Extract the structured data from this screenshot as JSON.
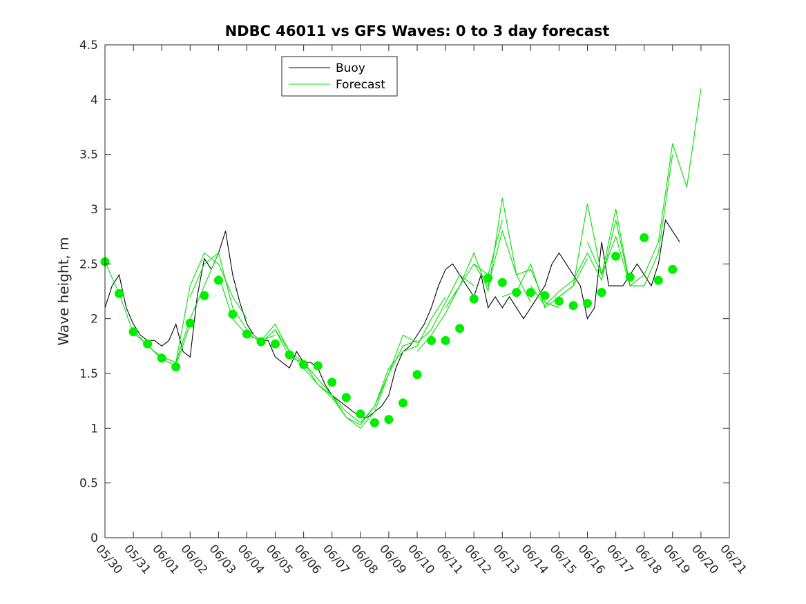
{
  "chart_data": {
    "type": "line",
    "title": "NDBC 46011 vs GFS Waves: 0 to 3 day forecast",
    "xlabel": "",
    "ylabel": "Wave height, m",
    "x_axis": {
      "type": "date",
      "range": [
        "2024-05-30",
        "2024-06-21"
      ],
      "tick_labels": [
        "05/30",
        "05/31",
        "06/01",
        "06/02",
        "06/03",
        "06/04",
        "06/05",
        "06/06",
        "06/07",
        "06/08",
        "06/09",
        "06/10",
        "06/11",
        "06/12",
        "06/13",
        "06/14",
        "06/15",
        "06/16",
        "06/17",
        "06/18",
        "06/19",
        "06/20",
        "06/21"
      ]
    },
    "y_axis": {
      "range": [
        0,
        4.5
      ],
      "tick_labels": [
        "0",
        "0.5",
        "1",
        "1.5",
        "2",
        "2.5",
        "3",
        "3.5",
        "4",
        "4.5"
      ]
    },
    "grid": false,
    "legend": {
      "placement": "top-left",
      "entries": [
        {
          "name": "Buoy",
          "color": "#000000"
        },
        {
          "name": "Forecast",
          "color": "#00e000"
        }
      ]
    },
    "colors": {
      "buoy": "#000000",
      "forecast": "#00e000",
      "marker": "#00ee00"
    },
    "series": [
      {
        "name": "Buoy",
        "x_day": [
          0,
          0.25,
          0.5,
          0.75,
          1,
          1.25,
          1.5,
          1.75,
          2,
          2.25,
          2.5,
          2.75,
          3,
          3.25,
          3.5,
          3.75,
          4,
          4.25,
          4.5,
          4.75,
          5,
          5.25,
          5.5,
          5.75,
          6,
          6.25,
          6.5,
          6.75,
          7,
          7.25,
          7.5,
          7.75,
          8,
          8.25,
          8.5,
          8.75,
          9,
          9.25,
          9.5,
          9.75,
          10,
          10.25,
          10.5,
          10.75,
          11,
          11.25,
          11.5,
          11.75,
          12,
          12.25,
          12.5,
          12.75,
          13,
          13.25,
          13.5,
          13.75,
          14,
          14.25,
          14.5,
          14.75,
          15,
          15.25,
          15.5,
          15.75,
          16,
          16.25,
          16.5,
          16.75,
          17,
          17.25,
          17.5,
          17.75,
          18,
          18.25,
          18.5,
          18.75,
          19,
          19.25,
          19.5,
          19.75,
          20,
          20.25
        ],
        "values": [
          2.1,
          2.3,
          2.4,
          2.1,
          1.95,
          1.85,
          1.8,
          1.8,
          1.75,
          1.8,
          1.95,
          1.7,
          1.65,
          2.2,
          2.55,
          2.45,
          2.6,
          2.8,
          2.4,
          2.15,
          1.95,
          1.85,
          1.8,
          1.8,
          1.65,
          1.6,
          1.55,
          1.7,
          1.6,
          1.6,
          1.55,
          1.4,
          1.3,
          1.25,
          1.2,
          1.15,
          1.1,
          1.1,
          1.15,
          1.2,
          1.3,
          1.55,
          1.7,
          1.75,
          1.85,
          1.95,
          2.1,
          2.3,
          2.45,
          2.5,
          2.4,
          2.3,
          2.2,
          2.4,
          2.1,
          2.2,
          2.1,
          2.2,
          2.1,
          2.0,
          2.1,
          2.2,
          2.3,
          2.5,
          2.6,
          2.5,
          2.4,
          2.3,
          2.0,
          2.1,
          2.7,
          2.3,
          2.3,
          2.3,
          2.4,
          2.5,
          2.4,
          2.3,
          2.5,
          2.9,
          2.8,
          2.7
        ]
      },
      {
        "name": "Forecast",
        "members": [
          {
            "x_day": [
              0,
              0.5,
              1,
              1.5,
              2,
              2.5,
              3
            ],
            "values": [
              2.52,
              2.23,
              1.87,
              1.76,
              1.63,
              1.57,
              1.95
            ]
          },
          {
            "x_day": [
              1,
              1.5,
              2,
              2.5,
              3,
              3.5,
              4
            ],
            "values": [
              1.9,
              1.75,
              1.65,
              1.6,
              2.0,
              2.3,
              2.6
            ]
          },
          {
            "x_day": [
              2,
              2.5,
              3,
              3.5,
              4,
              4.5,
              5
            ],
            "values": [
              1.65,
              1.6,
              2.3,
              2.6,
              2.5,
              2.2,
              2.0
            ]
          },
          {
            "x_day": [
              3,
              3.5,
              4,
              4.5,
              5,
              5.5,
              6
            ],
            "values": [
              2.2,
              2.5,
              2.6,
              2.1,
              1.9,
              1.8,
              1.85
            ]
          },
          {
            "x_day": [
              4,
              4.5,
              5,
              5.5,
              6,
              6.5,
              7
            ],
            "values": [
              2.4,
              2.0,
              1.85,
              1.8,
              1.95,
              1.7,
              1.6
            ]
          },
          {
            "x_day": [
              5,
              5.5,
              6,
              6.5,
              7,
              7.5,
              8
            ],
            "values": [
              1.88,
              1.78,
              1.9,
              1.7,
              1.55,
              1.4,
              1.3
            ]
          },
          {
            "x_day": [
              6,
              6.5,
              7,
              7.5,
              8,
              8.5,
              9
            ],
            "values": [
              1.9,
              1.65,
              1.6,
              1.45,
              1.3,
              1.15,
              1.05
            ]
          },
          {
            "x_day": [
              7,
              7.5,
              8,
              8.5,
              9,
              9.5,
              10
            ],
            "values": [
              1.6,
              1.4,
              1.28,
              1.1,
              1.0,
              1.15,
              1.5
            ]
          },
          {
            "x_day": [
              8,
              8.5,
              9,
              9.5,
              10,
              10.5,
              11
            ],
            "values": [
              1.3,
              1.1,
              1.03,
              1.2,
              1.5,
              1.75,
              1.8
            ]
          },
          {
            "x_day": [
              9,
              9.5,
              10,
              10.5,
              11,
              11.5,
              12
            ],
            "values": [
              1.05,
              1.2,
              1.55,
              1.7,
              1.75,
              2.0,
              2.2
            ]
          },
          {
            "x_day": [
              10,
              10.5,
              11,
              11.5,
              12,
              12.5,
              13
            ],
            "values": [
              1.5,
              1.85,
              1.78,
              1.9,
              2.15,
              2.4,
              2.3
            ]
          },
          {
            "x_day": [
              11,
              11.5,
              12,
              12.5,
              13,
              13.5,
              14
            ],
            "values": [
              1.7,
              1.85,
              2.05,
              2.3,
              2.5,
              2.4,
              2.9
            ]
          },
          {
            "x_day": [
              12,
              12.5,
              13,
              13.5,
              14,
              14.5,
              15
            ],
            "values": [
              2.1,
              2.3,
              2.6,
              2.25,
              3.1,
              2.4,
              2.15
            ]
          },
          {
            "x_day": [
              13,
              13.5,
              14,
              14.5,
              15,
              15.5,
              16
            ],
            "values": [
              2.5,
              2.3,
              2.8,
              2.4,
              2.45,
              2.15,
              2.1
            ]
          },
          {
            "x_day": [
              14,
              14.5,
              15,
              15.5,
              16,
              16.5,
              17
            ],
            "values": [
              2.2,
              2.25,
              2.5,
              2.1,
              2.2,
              2.3,
              2.55
            ]
          },
          {
            "x_day": [
              15,
              15.5,
              16,
              16.5,
              17,
              17.5,
              18
            ],
            "values": [
              2.3,
              2.12,
              2.25,
              2.35,
              2.6,
              2.35,
              2.9
            ]
          },
          {
            "x_day": [
              16,
              16.5,
              17,
              17.5,
              18,
              18.5,
              19
            ],
            "values": [
              2.2,
              2.3,
              3.05,
              2.4,
              3.0,
              2.3,
              2.3
            ]
          },
          {
            "x_day": [
              17,
              17.5,
              18,
              18.5,
              19,
              19.5,
              20
            ],
            "values": [
              2.7,
              2.4,
              2.75,
              2.3,
              2.3,
              2.6,
              3.5
            ]
          },
          {
            "x_day": [
              18,
              18.5,
              19,
              19.5,
              20,
              20.5,
              21
            ],
            "values": [
              2.9,
              2.3,
              2.4,
              2.7,
              3.6,
              3.2,
              4.1
            ]
          }
        ]
      },
      {
        "name": "Forecast analysis points",
        "x_day": [
          0,
          0.5,
          1,
          1.5,
          2,
          2.5,
          3,
          3.5,
          4,
          4.5,
          5,
          5.5,
          6,
          6.5,
          7,
          7.5,
          8,
          8.5,
          9,
          9.5,
          10,
          10.5,
          11,
          11.5,
          12,
          12.5,
          13,
          13.5,
          14,
          14.5,
          15,
          15.5,
          16,
          16.5,
          17,
          17.5,
          18,
          18.5,
          19,
          19.5,
          20
        ],
        "values": [
          2.52,
          2.23,
          1.88,
          1.77,
          1.64,
          1.56,
          1.96,
          2.21,
          2.35,
          2.04,
          1.86,
          1.79,
          1.77,
          1.67,
          1.58,
          1.57,
          1.42,
          1.28,
          1.13,
          1.05,
          1.08,
          1.23,
          1.49,
          1.8,
          1.8,
          1.91,
          2.18,
          2.37,
          2.33,
          2.24,
          2.24,
          2.21,
          2.16,
          2.12,
          2.14,
          2.24,
          2.57,
          2.38,
          2.74,
          2.35,
          2.45
        ]
      }
    ]
  }
}
